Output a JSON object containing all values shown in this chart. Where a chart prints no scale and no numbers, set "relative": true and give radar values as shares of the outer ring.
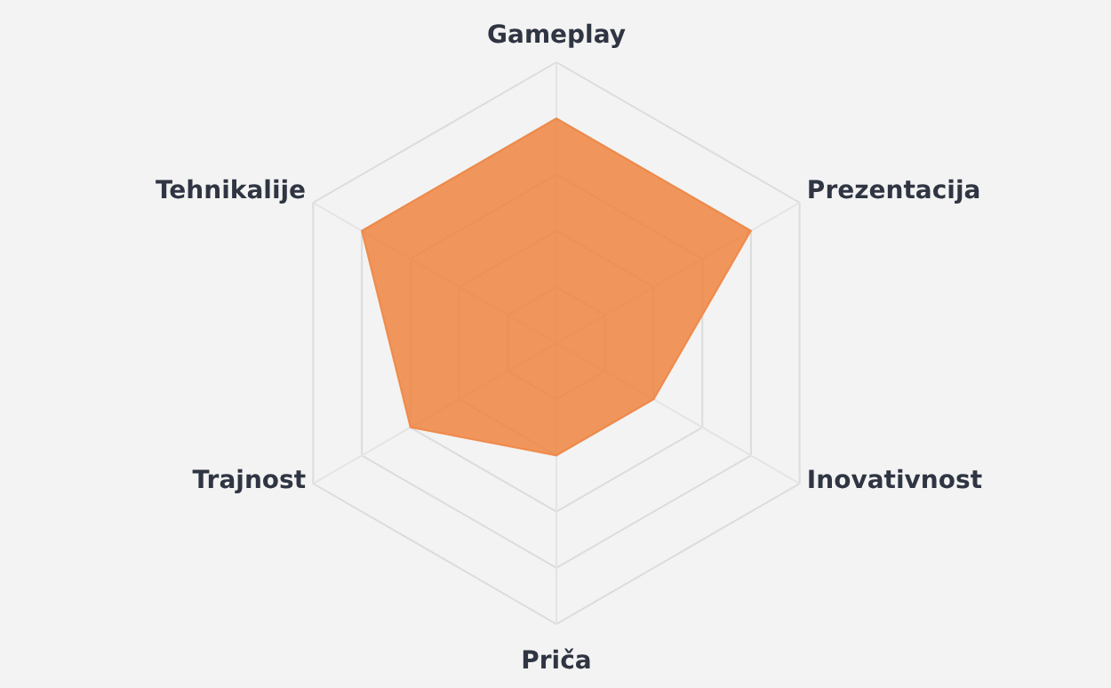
{
  "chart_data": {
    "type": "radar",
    "relative": true,
    "grid": true,
    "categories": [
      "Gameplay",
      "Prezentacija",
      "Inovativnost",
      "Priča",
      "Trajnost",
      "Tehnikalije"
    ],
    "series": [
      {
        "color": "#ee8440",
        "values": [
          0.8,
          0.8,
          0.4,
          0.4,
          0.6,
          0.8
        ]
      }
    ]
  }
}
